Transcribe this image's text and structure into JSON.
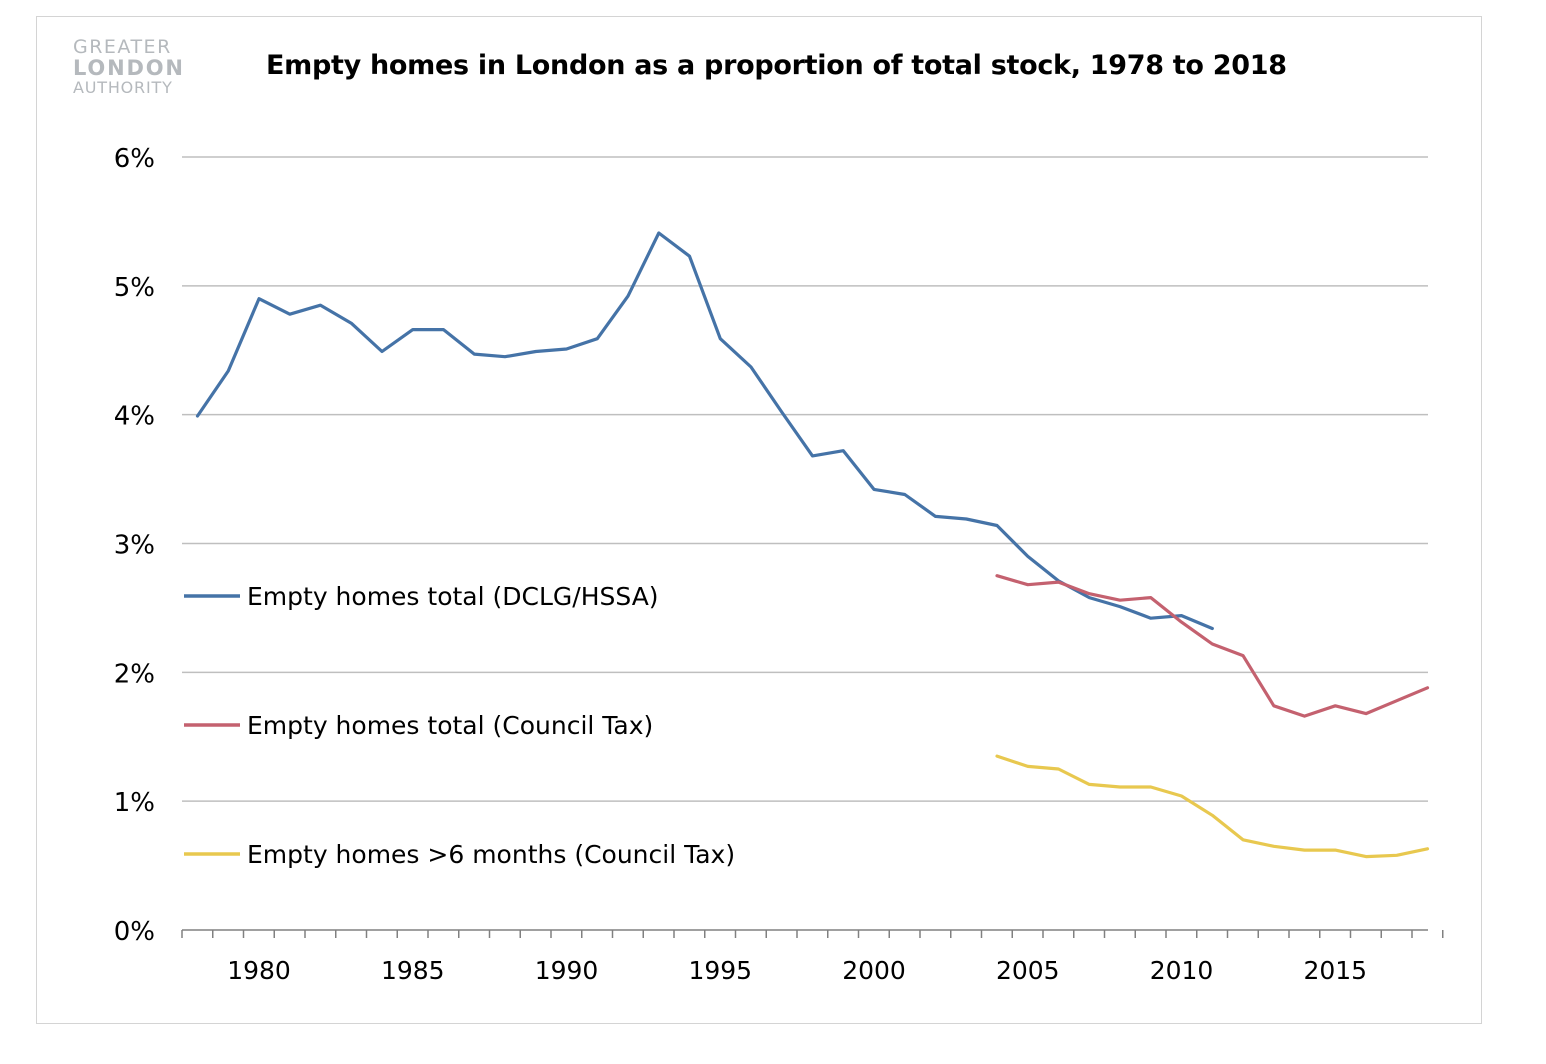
{
  "logo": {
    "line1": "GREATER",
    "line2": "LONDON",
    "line3": "AUTHORITY"
  },
  "chart_data": {
    "type": "line",
    "title": "Empty homes in London as a proportion of total stock, 1978 to 2018",
    "xlabel": "",
    "ylabel": "",
    "xlim": [
      1978,
      2018
    ],
    "ylim": [
      0,
      6
    ],
    "yticks": [
      0,
      1,
      2,
      3,
      4,
      5,
      6
    ],
    "ytick_labels": [
      "0%",
      "1%",
      "2%",
      "3%",
      "4%",
      "5%",
      "6%"
    ],
    "xticks": [
      1980,
      1985,
      1990,
      1995,
      2000,
      2005,
      2010,
      2015
    ],
    "xtick_labels": [
      "1980",
      "1985",
      "1990",
      "1995",
      "2000",
      "2005",
      "2010",
      "2015"
    ],
    "grid": "horizontal",
    "legend": "left, inline",
    "series": [
      {
        "name": "Empty homes total (DCLG/HSSA)",
        "color": "#4573a7",
        "x": [
          1978,
          1979,
          1980,
          1981,
          1982,
          1983,
          1984,
          1985,
          1986,
          1987,
          1988,
          1989,
          1990,
          1991,
          1992,
          1993,
          1994,
          1995,
          1996,
          1997,
          1998,
          1999,
          2000,
          2001,
          2002,
          2003,
          2004,
          2005,
          2006,
          2007,
          2008,
          2009,
          2010,
          2011
        ],
        "y": [
          3.99,
          4.34,
          4.9,
          4.78,
          4.85,
          4.71,
          4.49,
          4.66,
          4.66,
          4.47,
          4.45,
          4.49,
          4.51,
          4.59,
          4.92,
          5.41,
          5.23,
          4.59,
          4.37,
          4.02,
          3.68,
          3.72,
          3.42,
          3.38,
          3.21,
          3.19,
          3.14,
          2.9,
          2.71,
          2.58,
          2.51,
          2.42,
          2.44,
          2.34
        ]
      },
      {
        "name": "Empty homes total (Council Tax)",
        "color": "#c4616f",
        "x": [
          2004,
          2005,
          2006,
          2007,
          2008,
          2009,
          2010,
          2011,
          2012,
          2013,
          2014,
          2015,
          2016,
          2017,
          2018
        ],
        "y": [
          2.75,
          2.68,
          2.7,
          2.61,
          2.56,
          2.58,
          2.39,
          2.22,
          2.13,
          1.74,
          1.66,
          1.74,
          1.68,
          1.78,
          1.88
        ]
      },
      {
        "name": "Empty homes >6 months (Council Tax)",
        "color": "#e8c84f",
        "x": [
          2004,
          2005,
          2006,
          2007,
          2008,
          2009,
          2010,
          2011,
          2012,
          2013,
          2014,
          2015,
          2016,
          2017,
          2018
        ],
        "y": [
          1.35,
          1.27,
          1.25,
          1.13,
          1.11,
          1.11,
          1.04,
          0.89,
          0.7,
          0.65,
          0.62,
          0.62,
          0.57,
          0.58,
          0.63
        ]
      }
    ]
  }
}
